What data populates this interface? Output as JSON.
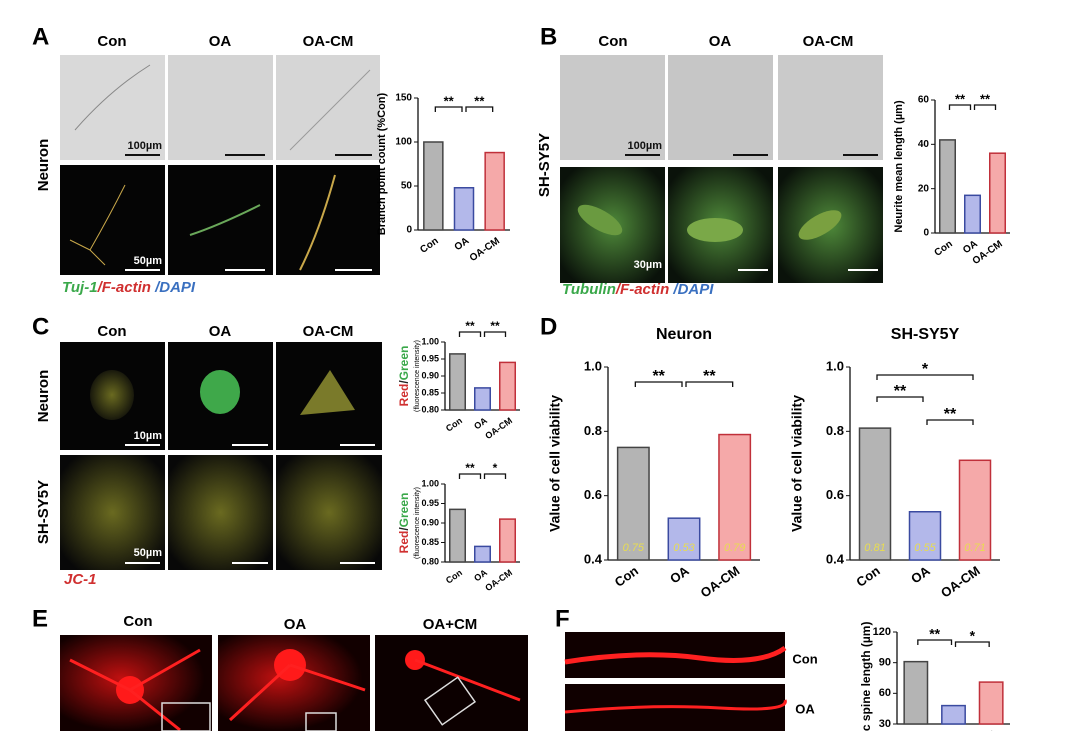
{
  "panels": {
    "A": {
      "letter": "A",
      "columns": [
        "Con",
        "OA",
        "OA-CM"
      ],
      "row": "Neuron",
      "scale_bars": [
        "100µm",
        "50µm"
      ],
      "stain": [
        "Tuj-1",
        "/F-actin",
        " /DAPI"
      ]
    },
    "B": {
      "letter": "B",
      "columns": [
        "Con",
        "OA",
        "OA-CM"
      ],
      "row": "SH-SY5Y",
      "scale_bars": [
        "100µm",
        "30µm"
      ],
      "stain": [
        "Tubulin",
        "/F-actin",
        " /DAPI"
      ]
    },
    "C": {
      "letter": "C",
      "columns": [
        "Con",
        "OA",
        "OA-CM"
      ],
      "rows": [
        "Neuron",
        "SH-SY5Y"
      ],
      "scale_bars": [
        "10µm",
        "50µm"
      ],
      "stain": "JC-1"
    },
    "D": {
      "letter": "D"
    },
    "E": {
      "letter": "E",
      "columns": [
        "Con",
        "OA",
        "OA+CM"
      ]
    },
    "F": {
      "letter": "F",
      "rows": [
        "Con",
        "OA"
      ]
    }
  },
  "chart_data": [
    {
      "type": "bar",
      "ylabel": "Branch point count (%Con)",
      "categories": [
        "Con",
        "OA",
        "OA-CM"
      ],
      "values": [
        100,
        48,
        88
      ],
      "colors": [
        "#b4b4b4",
        "#b3b8ea",
        "#f5a9a9"
      ],
      "edge_colors": [
        "#444444",
        "#3a4aa0",
        "#c0303a"
      ],
      "ylim": [
        0,
        150
      ],
      "yticks": [
        0,
        50,
        100,
        150
      ],
      "annotations": [
        "**",
        "**"
      ]
    },
    {
      "type": "bar",
      "ylabel": "Neurite mean length (µm)",
      "categories": [
        "Con",
        "OA",
        "OA-CM"
      ],
      "values": [
        42,
        17,
        36
      ],
      "colors": [
        "#b4b4b4",
        "#b3b8ea",
        "#f5a9a9"
      ],
      "edge_colors": [
        "#444444",
        "#3a4aa0",
        "#c0303a"
      ],
      "ylim": [
        0,
        60
      ],
      "yticks": [
        0,
        20,
        40,
        60
      ],
      "annotations": [
        "**",
        "**"
      ]
    },
    {
      "type": "bar",
      "ylabel_parts": [
        "Red",
        "/",
        "Green"
      ],
      "ylabel_note": "(fluorescence intensity)",
      "categories": [
        "Con",
        "OA",
        "OA-CM"
      ],
      "values": [
        0.965,
        0.865,
        0.94
      ],
      "colors": [
        "#b4b4b4",
        "#b3b8ea",
        "#f5a9a9"
      ],
      "edge_colors": [
        "#444444",
        "#3a4aa0",
        "#c0303a"
      ],
      "ylim": [
        0.8,
        1
      ],
      "yticks": [
        {
          "value": 0.8,
          "label": "0.80"
        },
        0.85,
        {
          "value": 0.9,
          "label": "0.90"
        },
        0.95,
        {
          "value": 1,
          "label": "1.00"
        }
      ],
      "annotations": [
        "**",
        "**"
      ]
    },
    {
      "type": "bar",
      "ylabel_parts": [
        "Red",
        "/",
        "Green"
      ],
      "ylabel_note": "(fluorescence intensity)",
      "categories": [
        "Con",
        "OA",
        "OA-CM"
      ],
      "values": [
        0.935,
        0.84,
        0.91
      ],
      "colors": [
        "#b4b4b4",
        "#b3b8ea",
        "#f5a9a9"
      ],
      "edge_colors": [
        "#444444",
        "#3a4aa0",
        "#c0303a"
      ],
      "ylim": [
        0.8,
        1
      ],
      "yticks": [
        {
          "value": 0.8,
          "label": "0.80"
        },
        0.85,
        {
          "value": 0.9,
          "label": "0.90"
        },
        0.95,
        {
          "value": 1,
          "label": "1.00"
        }
      ],
      "annotations": [
        "**",
        "*"
      ]
    },
    {
      "type": "bar",
      "title": "Neuron",
      "ylabel": "Value of cell viability",
      "categories": [
        "Con",
        "OA",
        "OA-CM"
      ],
      "values": [
        0.75,
        0.53,
        0.79
      ],
      "show_values": true,
      "colors": [
        "#b4b4b4",
        "#b3b8ea",
        "#f5a9a9"
      ],
      "edge_colors": [
        "#444444",
        "#3a4aa0",
        "#c0303a"
      ],
      "ylim": [
        0.4,
        1
      ],
      "yticks": [
        0.4,
        0.6,
        0.8,
        {
          "value": 1,
          "label": "1.0"
        }
      ],
      "annotations": [
        "**",
        "**"
      ]
    },
    {
      "type": "bar",
      "title": "SH-SY5Y",
      "ylabel": "Value of cell viability",
      "categories": [
        "Con",
        "OA",
        "OA-CM"
      ],
      "values": [
        0.81,
        0.55,
        0.71
      ],
      "show_values": true,
      "colors": [
        "#b4b4b4",
        "#b3b8ea",
        "#f5a9a9"
      ],
      "edge_colors": [
        "#444444",
        "#3a4aa0",
        "#c0303a"
      ],
      "ylim": [
        0.4,
        1
      ],
      "yticks": [
        0.4,
        0.6,
        0.8,
        {
          "value": 1,
          "label": "1.0"
        }
      ],
      "annotations": [
        "**",
        "**",
        "*"
      ]
    },
    {
      "type": "bar",
      "ylabel": "ic spine length (µm)",
      "categories": [
        "Con",
        "OA",
        "OA-CM"
      ],
      "values": [
        91,
        48,
        71
      ],
      "colors": [
        "#b4b4b4",
        "#b3b8ea",
        "#f5a9a9"
      ],
      "edge_colors": [
        "#444444",
        "#3a4aa0",
        "#c0303a"
      ],
      "ylim": [
        30,
        120
      ],
      "yticks": [
        30,
        60,
        90,
        120
      ],
      "annotations": [
        "**",
        "*"
      ]
    }
  ]
}
